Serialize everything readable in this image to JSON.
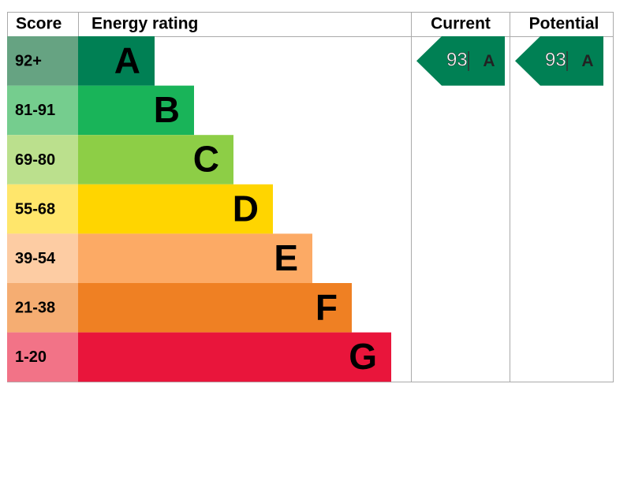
{
  "header": {
    "score": "Score",
    "energy_rating": "Energy rating",
    "current": "Current",
    "potential": "Potential"
  },
  "bands": [
    {
      "score": "92+",
      "letter": "A",
      "color": "#008054",
      "cell_color": "#66a382"
    },
    {
      "score": "81-91",
      "letter": "B",
      "color": "#19b459",
      "cell_color": "#75cd8e"
    },
    {
      "score": "69-80",
      "letter": "C",
      "color": "#8dce46",
      "cell_color": "#bbe08d"
    },
    {
      "score": "55-68",
      "letter": "D",
      "color": "#ffd500",
      "cell_color": "#ffe66b"
    },
    {
      "score": "39-54",
      "letter": "E",
      "color": "#fcaa65",
      "cell_color": "#fdcca3"
    },
    {
      "score": "21-38",
      "letter": "F",
      "color": "#ef8023",
      "cell_color": "#f5ad72"
    },
    {
      "score": "1-20",
      "letter": "G",
      "color": "#e9153b",
      "cell_color": "#f27387"
    }
  ],
  "current": {
    "value": 93,
    "rating": "A",
    "color": "#008054"
  },
  "potential": {
    "value": 93,
    "rating": "A",
    "color": "#008054"
  }
}
